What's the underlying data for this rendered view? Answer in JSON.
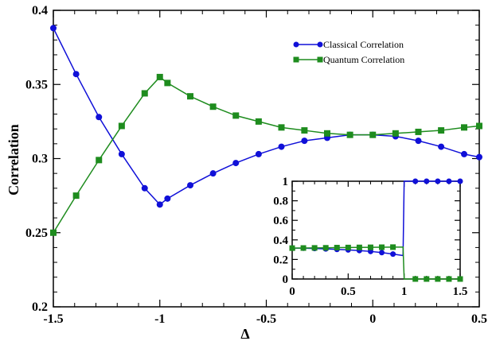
{
  "chart_data": [
    {
      "type": "line",
      "title": "",
      "xlabel": "Δ",
      "ylabel": "Correlation",
      "xlim": [
        -1.5,
        0.5
      ],
      "ylim": [
        0.2,
        0.4
      ],
      "xticks": [
        "-1.5",
        "-1",
        "-0.5",
        "0",
        "0.5"
      ],
      "yticks": [
        "0.2",
        "0.25",
        "0.3",
        "0.35",
        "0.4"
      ],
      "legend_position": "top-right",
      "grid": false,
      "series": [
        {
          "name": "Classical Correlation",
          "color": "#1010d8",
          "marker": "circle",
          "x": [
            -1.5,
            -1.393,
            -1.286,
            -1.179,
            -1.071,
            -1.0,
            -0.964,
            -0.857,
            -0.75,
            -0.643,
            -0.536,
            -0.429,
            -0.321,
            -0.214,
            -0.107,
            0.0,
            0.107,
            0.214,
            0.321,
            0.429,
            0.5
          ],
          "y": [
            0.388,
            0.357,
            0.328,
            0.303,
            0.28,
            0.269,
            0.273,
            0.282,
            0.29,
            0.297,
            0.303,
            0.308,
            0.312,
            0.314,
            0.316,
            0.316,
            0.315,
            0.312,
            0.308,
            0.303,
            0.301
          ]
        },
        {
          "name": "Quantum Correlation",
          "color": "#1e8c1e",
          "marker": "square",
          "x": [
            -1.5,
            -1.393,
            -1.286,
            -1.179,
            -1.071,
            -1.0,
            -0.964,
            -0.857,
            -0.75,
            -0.643,
            -0.536,
            -0.429,
            -0.321,
            -0.214,
            -0.107,
            0.0,
            0.107,
            0.214,
            0.321,
            0.429,
            0.5
          ],
          "y": [
            0.25,
            0.275,
            0.299,
            0.322,
            0.344,
            0.355,
            0.351,
            0.342,
            0.335,
            0.329,
            0.325,
            0.321,
            0.319,
            0.317,
            0.316,
            0.316,
            0.317,
            0.318,
            0.319,
            0.321,
            0.322
          ]
        }
      ]
    },
    {
      "type": "line",
      "title": "",
      "xlabel": "",
      "ylabel": "",
      "position": "inset-bottom-right",
      "xlim": [
        0,
        1.5
      ],
      "ylim": [
        0,
        1
      ],
      "xticks": [
        "0",
        "0.5",
        "1",
        "1.5"
      ],
      "yticks": [
        "0",
        "0.2",
        "0.4",
        "0.6",
        "0.8",
        "1"
      ],
      "series": [
        {
          "name": "Classical Correlation",
          "color": "#1010d8",
          "marker": "circle",
          "x": [
            0.0,
            0.1,
            0.2,
            0.3,
            0.4,
            0.5,
            0.6,
            0.7,
            0.8,
            0.9,
            0.99,
            1.0,
            1.1,
            1.2,
            1.3,
            1.4,
            1.5
          ],
          "y": [
            0.316,
            0.315,
            0.312,
            0.308,
            0.303,
            0.298,
            0.291,
            0.282,
            0.27,
            0.255,
            0.24,
            1.0,
            1.0,
            1.0,
            1.0,
            1.0,
            1.0
          ],
          "marker_x": [
            0.0,
            0.1,
            0.2,
            0.3,
            0.4,
            0.5,
            0.6,
            0.7,
            0.8,
            0.9,
            1.1,
            1.2,
            1.3,
            1.4,
            1.5
          ]
        },
        {
          "name": "Quantum Correlation",
          "color": "#1e8c1e",
          "marker": "square",
          "x": [
            0.0,
            0.1,
            0.2,
            0.3,
            0.4,
            0.5,
            0.6,
            0.7,
            0.8,
            0.9,
            0.99,
            1.0,
            1.1,
            1.2,
            1.3,
            1.4,
            1.5
          ],
          "y": [
            0.316,
            0.317,
            0.318,
            0.319,
            0.321,
            0.322,
            0.323,
            0.324,
            0.325,
            0.326,
            0.326,
            0.0,
            0.0,
            0.0,
            0.0,
            0.0,
            0.0
          ],
          "marker_x": [
            0.0,
            0.1,
            0.2,
            0.3,
            0.4,
            0.5,
            0.6,
            0.7,
            0.8,
            0.9,
            1.1,
            1.2,
            1.3,
            1.4,
            1.5
          ]
        }
      ]
    }
  ]
}
